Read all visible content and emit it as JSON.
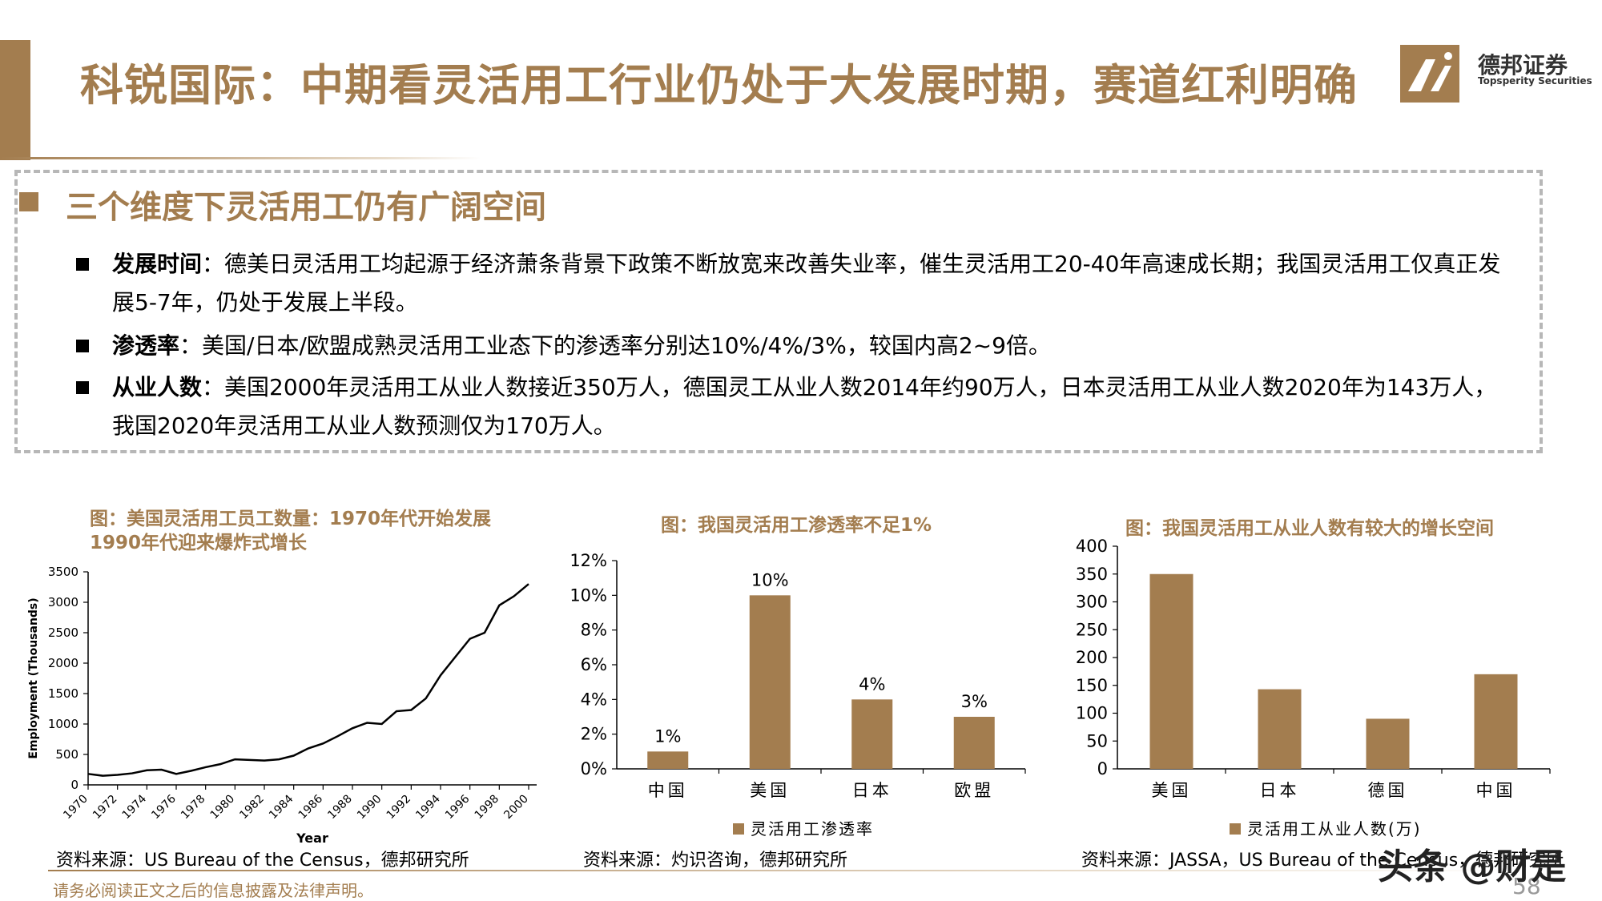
{
  "header": {
    "title": "科锐国际：中期看灵活用工行业仍处于大发展时期，赛道红利明确",
    "brand_cn": "德邦证券",
    "brand_en": "Topsperity Securities"
  },
  "summary_box": {
    "heading": "三个维度下灵活用工仍有广阔空间",
    "bullets": [
      {
        "label": "发展时间",
        "text": "：德美日灵活用工均起源于经济萧条背景下政策不断放宽来改善失业率，催生灵活用工20-40年高速成长期；我国灵活用工仅真正发展5-7年，仍处于发展上半段。"
      },
      {
        "label": "渗透率",
        "text": "：美国/日本/欧盟成熟灵活用工业态下的渗透率分别达10%/4%/3%，较国内高2~9倍。"
      },
      {
        "label": "从业人数",
        "text": "：美国2000年灵活用工从业人数接近350万人，德国灵工从业人数2014年约90万人，日本灵活用工从业人数2020年为143万人，我国2020年灵活用工从业人数预测仅为170万人。"
      }
    ]
  },
  "colors": {
    "accent": "#a37d4f",
    "bar": "#a37d4f",
    "line": "#000000"
  },
  "chart_data": [
    {
      "type": "line",
      "caption_line1": "图：美国灵活用工员工数量：1970年代开始发展",
      "caption_line2": "1990年代迎来爆炸式增长",
      "xlabel": "Year",
      "ylabel": "Employment (Thousands)",
      "xlim": [
        1970,
        2000
      ],
      "ylim": [
        0,
        3500
      ],
      "x_ticks": [
        "1970",
        "1972",
        "1974",
        "1976",
        "1978",
        "1980",
        "1982",
        "1984",
        "1986",
        "1988",
        "1990",
        "1992",
        "1994",
        "1996",
        "1998",
        "2000"
      ],
      "y_ticks": [
        "0",
        "500",
        "1000",
        "1500",
        "2000",
        "2500",
        "3000",
        "3500"
      ],
      "x": [
        1970,
        1971,
        1972,
        1973,
        1974,
        1975,
        1976,
        1977,
        1978,
        1979,
        1980,
        1981,
        1982,
        1983,
        1984,
        1985,
        1986,
        1987,
        1988,
        1989,
        1990,
        1991,
        1992,
        1993,
        1994,
        1995,
        1996,
        1997,
        1998,
        1999,
        2000
      ],
      "values": [
        180,
        150,
        165,
        190,
        240,
        250,
        180,
        230,
        290,
        340,
        420,
        410,
        400,
        420,
        480,
        600,
        680,
        800,
        930,
        1020,
        1000,
        1210,
        1230,
        1420,
        1800,
        2100,
        2400,
        2500,
        2950,
        3100,
        3300
      ],
      "source": "资料来源：US Bureau of the Census，德邦研究所"
    },
    {
      "type": "bar",
      "caption": "图：我国灵活用工渗透率不足1%",
      "categories": [
        "中国",
        "美国",
        "日本",
        "欧盟"
      ],
      "values": [
        1,
        10,
        4,
        3
      ],
      "labels": [
        "1%",
        "10%",
        "4%",
        "3%"
      ],
      "ylim": [
        0,
        12
      ],
      "y_ticks": [
        "0%",
        "2%",
        "4%",
        "6%",
        "8%",
        "10%",
        "12%"
      ],
      "legend": "灵活用工渗透率",
      "source": "资料来源：灼识咨询，德邦研究所"
    },
    {
      "type": "bar",
      "caption": "图：我国灵活用工从业人数有较大的增长空间",
      "categories": [
        "美国",
        "日本",
        "德国",
        "中国"
      ],
      "values": [
        350,
        143,
        90,
        170
      ],
      "ylim": [
        0,
        400
      ],
      "y_ticks": [
        "0",
        "50",
        "100",
        "150",
        "200",
        "250",
        "300",
        "350",
        "400"
      ],
      "legend": "灵活用工从业人数(万)",
      "source": "资料来源：JASSA，US Bureau of the Census，德邦研究所"
    }
  ],
  "footer": {
    "disclaimer": "请务必阅读正文之后的信息披露及法律声明。",
    "page_number": "58",
    "watermark": "头条 @财是"
  }
}
